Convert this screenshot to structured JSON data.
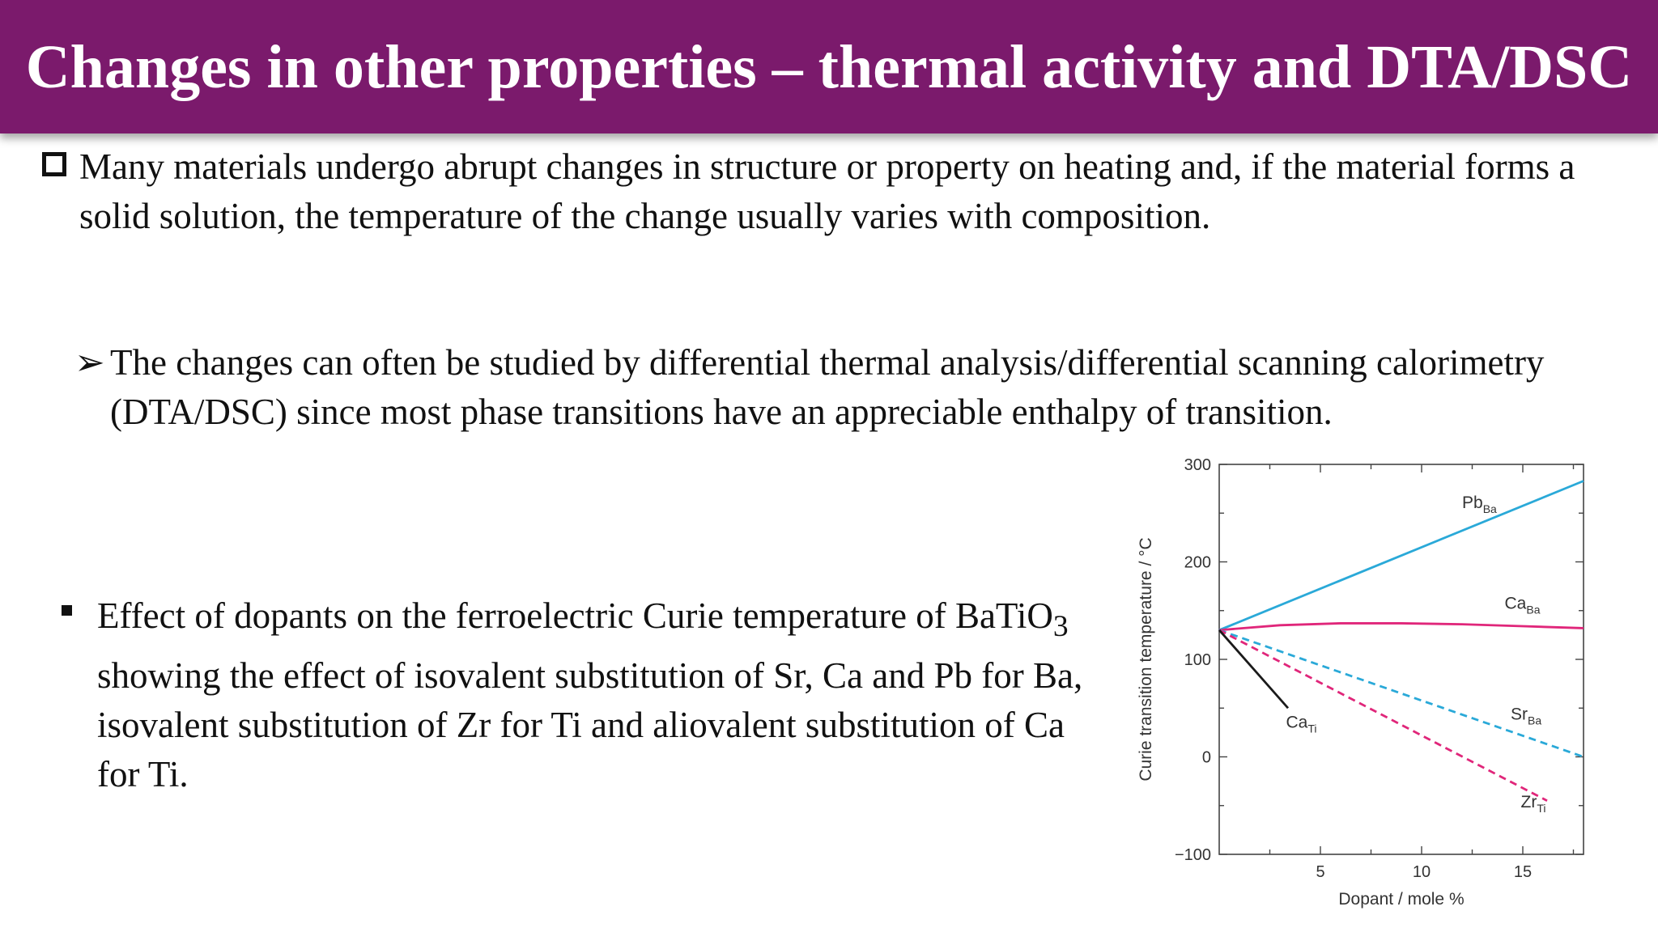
{
  "slide": {
    "title": "Changes in other properties – thermal activity and DTA/DSC",
    "bullet1": "Many materials undergo abrupt changes in structure or property on heating and, if the material forms a solid solution, the temperature of the change usually varies with composition.",
    "bullet2": "The changes can often be studied by differential thermal analysis/differential scanning calorimetry (DTA/DSC) since most phase transitions have an appreciable enthalpy of transition.",
    "bullet3_a": "Effect of dopants on the ferroelectric Curie temperature of BaTiO",
    "bullet3_sub": "3",
    "bullet3_b": " showing the effect of isovalent substitution of Sr, Ca and Pb for Ba, isovalent substitution of Zr for Ti and aliovalent substitution of Ca for Ti."
  },
  "chart_data": {
    "type": "line",
    "xlabel": "Dopant / mole %",
    "ylabel": "Curie transition temperature / °C",
    "xlim": [
      0,
      18
    ],
    "ylim": [
      -100,
      300
    ],
    "xticks": [
      5,
      10,
      15
    ],
    "xtick_labels": [
      "5",
      "10",
      "15"
    ],
    "yticks": [
      -100,
      0,
      100,
      200,
      300
    ],
    "ytick_labels": [
      "−100",
      "0",
      "100",
      "200",
      "300"
    ],
    "grid": false,
    "series": [
      {
        "name": "PbBa",
        "base": "Pb",
        "sub": "Ba",
        "color": "#2aa9d8",
        "dash": false,
        "x": [
          0,
          18
        ],
        "y": [
          130,
          283
        ],
        "label_at": [
          12,
          255
        ]
      },
      {
        "name": "CaBa",
        "base": "Ca",
        "sub": "Ba",
        "color": "#e0267a",
        "dash": false,
        "x": [
          0,
          3,
          6,
          9,
          12,
          15,
          18
        ],
        "y": [
          130,
          135,
          137,
          137,
          136,
          134,
          132
        ],
        "label_at": [
          14.1,
          152
        ]
      },
      {
        "name": "SrBa",
        "base": "Sr",
        "sub": "Ba",
        "color": "#2aa9d8",
        "dash": true,
        "x": [
          0,
          18
        ],
        "y": [
          130,
          0
        ],
        "label_at": [
          14.4,
          38
        ]
      },
      {
        "name": "ZrTi",
        "base": "Zr",
        "sub": "Ti",
        "color": "#e0267a",
        "dash": true,
        "x": [
          0,
          16.2
        ],
        "y": [
          130,
          -45
        ],
        "label_at": [
          14.9,
          -52
        ]
      },
      {
        "name": "CaTi",
        "base": "Ca",
        "sub": "Ti",
        "color": "#1a1a1a",
        "dash": false,
        "x": [
          0,
          3.4
        ],
        "y": [
          130,
          50
        ],
        "label_at": [
          3.3,
          30
        ]
      }
    ]
  }
}
